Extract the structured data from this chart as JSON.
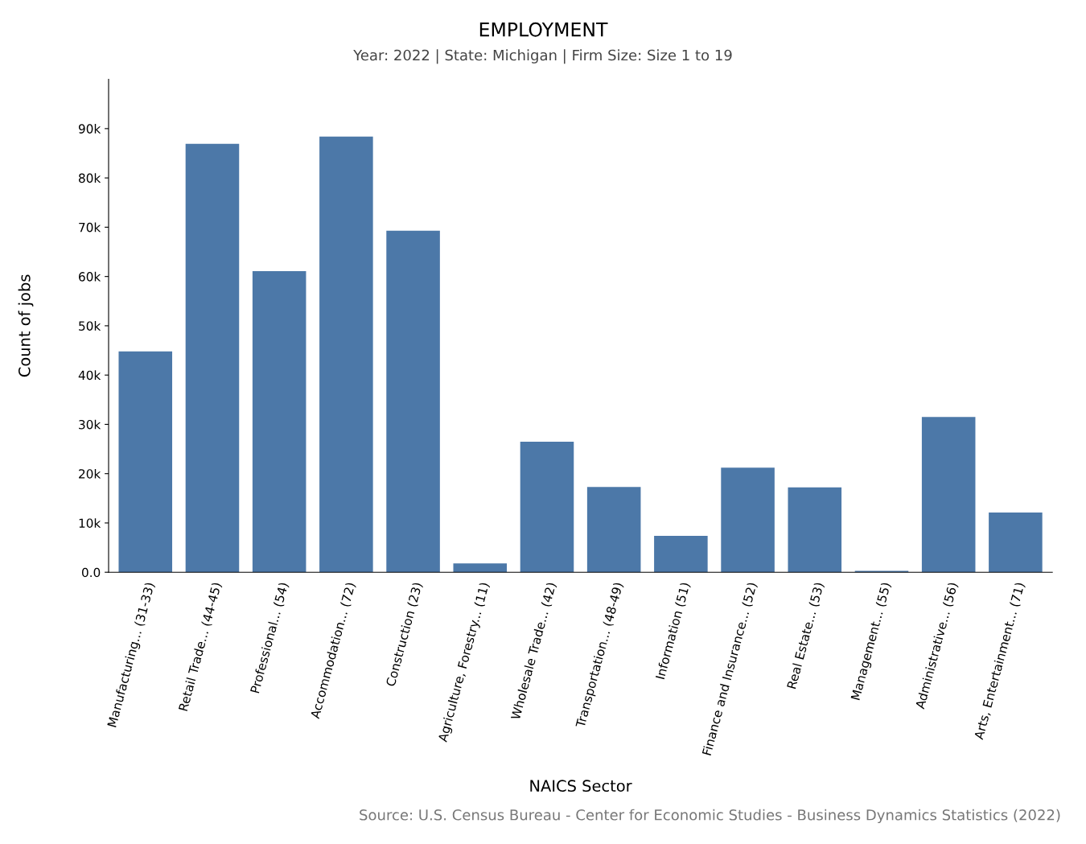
{
  "chart_data": {
    "type": "bar",
    "title": "EMPLOYMENT",
    "subtitle": "Year: 2022 | State: Michigan | Firm Size: Size 1 to 19",
    "xlabel": "NAICS Sector",
    "ylabel": "Count of jobs",
    "categories": [
      "Manufacturing... (31-33)",
      "Retail Trade... (44-45)",
      "Professional... (54)",
      "Accommodation... (72)",
      "Construction (23)",
      "Agriculture, Forestry... (11)",
      "Wholesale Trade... (42)",
      "Transportation... (48-49)",
      "Information (51)",
      "Finance and Insurance... (52)",
      "Real Estate... (53)",
      "Management... (55)",
      "Administrative... (56)",
      "Arts, Entertainment... (71)"
    ],
    "values": [
      44800,
      86900,
      61100,
      88400,
      69300,
      1800,
      26500,
      17300,
      7400,
      21200,
      17200,
      300,
      31500,
      12100
    ],
    "color": "#4c78a8",
    "ylim": [
      0,
      100000
    ],
    "yticks": [
      {
        "value": 0,
        "label": "0.0"
      },
      {
        "value": 10000,
        "label": "10k"
      },
      {
        "value": 20000,
        "label": "20k"
      },
      {
        "value": 30000,
        "label": "30k"
      },
      {
        "value": 40000,
        "label": "40k"
      },
      {
        "value": 50000,
        "label": "50k"
      },
      {
        "value": 60000,
        "label": "60k"
      },
      {
        "value": 70000,
        "label": "70k"
      },
      {
        "value": 80000,
        "label": "80k"
      },
      {
        "value": 90000,
        "label": "90k"
      }
    ],
    "grid": false,
    "legend": false,
    "annotations": [
      "Source: U.S. Census Bureau - Center for Economic Studies - Business Dynamics Statistics (2022)"
    ]
  }
}
